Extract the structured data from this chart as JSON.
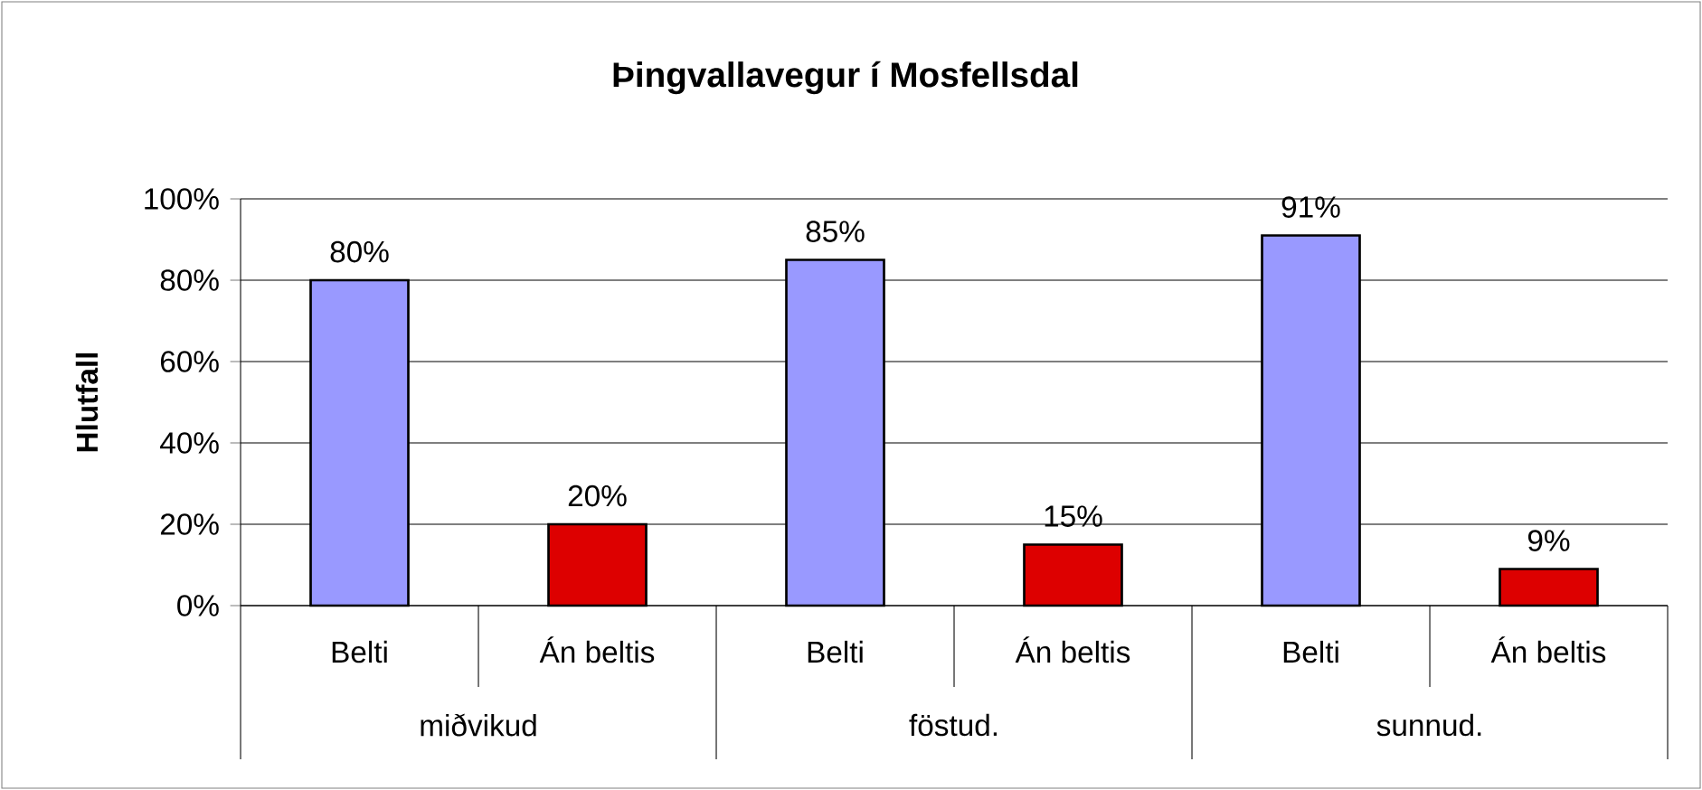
{
  "chart_data": {
    "type": "bar",
    "title": "Þingvallavegur í Mosfellsdal",
    "ylabel": "Hlutfall",
    "categories": [
      "Belti",
      "Án beltis",
      "Belti",
      "Án beltis",
      "Belti",
      "Án beltis"
    ],
    "values": [
      80,
      20,
      85,
      15,
      91,
      9
    ],
    "colors": [
      "#9999ff",
      "#dd0000",
      "#9999ff",
      "#dd0000",
      "#9999ff",
      "#dd0000"
    ],
    "value_labels": [
      "80%",
      "20%",
      "85%",
      "15%",
      "91%",
      "9%"
    ],
    "annotations": [
      "miðvikud",
      "föstud.",
      "sunnud."
    ],
    "ylim": [
      0,
      100
    ],
    "yticks": [
      {
        "value": 0,
        "label": "0%"
      },
      {
        "value": 20,
        "label": "20%"
      },
      {
        "value": 40,
        "label": "40%"
      },
      {
        "value": 60,
        "label": "60%"
      },
      {
        "value": 80,
        "label": "80%"
      },
      {
        "value": 100,
        "label": "100%"
      }
    ],
    "grid": "y"
  }
}
